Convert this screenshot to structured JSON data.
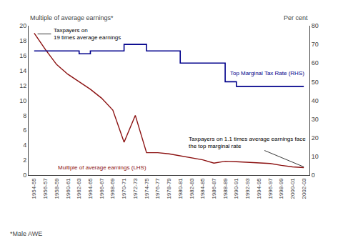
{
  "chart_data": {
    "type": "line",
    "ylabel": "Multiple of average earnings*",
    "y2label": "Per cent",
    "footnote": "*Male AWE",
    "annotations": [
      "Taxpayers on\n19 times average earnings",
      "Taxpayers on 1.1 times average earnings face\nthe top marginal rate"
    ],
    "categories": [
      "1954-55",
      "1956-57",
      "1958-59",
      "1960-61",
      "1962-63",
      "1964-65",
      "1966-67",
      "1968-69",
      "1970-71",
      "1972-73",
      "1974-75",
      "1976-77",
      "1978-79",
      "1980-81",
      "1982-83",
      "1984-85",
      "1986-87",
      "1988-89",
      "1990-91",
      "1992-93",
      "1994-95",
      "1996-97",
      "1998-99",
      "2000-01",
      "2002-03"
    ],
    "series": [
      {
        "name": "Multiple of average earnings (LHS)",
        "color": "#8B1010",
        "type": "line",
        "values": [
          19.0,
          16.8,
          14.8,
          13.5,
          12.5,
          11.5,
          10.3,
          8.7,
          4.4,
          8.0,
          3.0,
          3.0,
          2.85,
          2.6,
          2.3,
          2.05,
          1.6,
          1.85,
          1.8,
          1.7,
          1.65,
          1.55,
          1.3,
          1.1,
          1.0
        ]
      },
      {
        "name": "Top Marginal Tax Rate (RHS)",
        "color": "#00008B",
        "type": "step",
        "axis": "y2",
        "values": [
          66.5,
          66.5,
          66.5,
          66.5,
          65.0,
          66.5,
          66.5,
          66.5,
          70.0,
          70.0,
          66.5,
          66.5,
          66.5,
          60.0,
          60.0,
          60.0,
          60.0,
          50.0,
          47.5,
          47.5,
          47.5,
          47.5,
          47.5,
          47.5,
          47.5
        ]
      }
    ],
    "ylim": [
      0,
      20
    ],
    "yticks": [
      0,
      2,
      4,
      6,
      8,
      10,
      12,
      14,
      16,
      18,
      20
    ],
    "y2lim": [
      0,
      80
    ],
    "y2ticks": [
      0,
      10,
      20,
      30,
      40,
      50,
      60,
      70,
      80
    ],
    "grid": false
  }
}
